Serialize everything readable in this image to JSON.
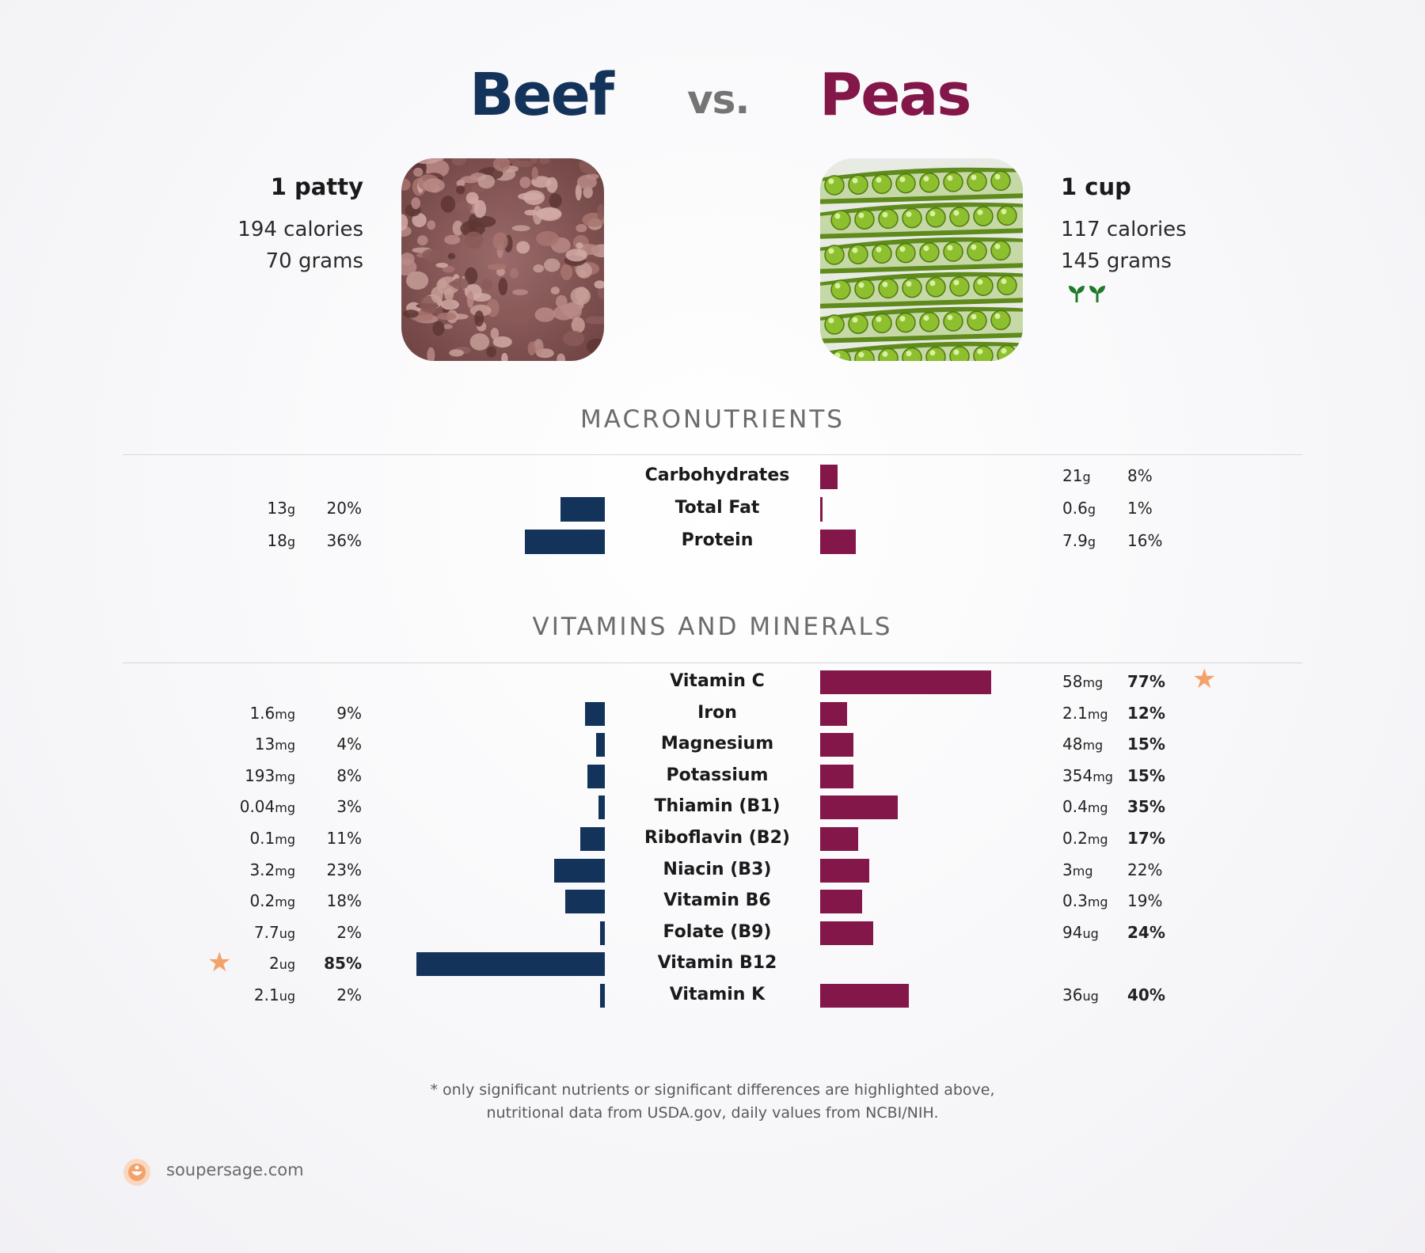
{
  "header": {
    "left_name": "Beef",
    "vs": "vs.",
    "right_name": "Peas",
    "left_color": "#14335a",
    "right_color": "#83174a"
  },
  "left_food": {
    "serving": "1 patty",
    "calories": "194 calories",
    "grams": "70 grams"
  },
  "right_food": {
    "serving": "1 cup",
    "calories": "117 calories",
    "grams": "145 grams",
    "badge_icon": "sprout-icon"
  },
  "sections": {
    "macros_title": "MACRONUTRIENTS",
    "vitamins_title": "VITAMINS AND MINERALS"
  },
  "chart_data": [
    {
      "type": "bar",
      "title": "MACRONUTRIENTS",
      "orientation": "horizontal-diverging",
      "rows": [
        {
          "label": "Carbohydrates",
          "left_amount": "",
          "left_unit": "",
          "left_pct": null,
          "left_pct_text": "",
          "left_bold": false,
          "right_amount": "21",
          "right_unit": "g",
          "right_pct": 8,
          "right_pct_text": "8%",
          "right_bold": false
        },
        {
          "label": "Total Fat",
          "left_amount": "13",
          "left_unit": "g",
          "left_pct": 20,
          "left_pct_text": "20%",
          "left_bold": false,
          "right_amount": "0.6",
          "right_unit": "g",
          "right_pct": 1,
          "right_pct_text": "1%",
          "right_bold": false
        },
        {
          "label": "Protein",
          "left_amount": "18",
          "left_unit": "g",
          "left_pct": 36,
          "left_pct_text": "36%",
          "left_bold": false,
          "right_amount": "7.9",
          "right_unit": "g",
          "right_pct": 16,
          "right_pct_text": "16%",
          "right_bold": false
        }
      ]
    },
    {
      "type": "bar",
      "title": "VITAMINS AND MINERALS",
      "orientation": "horizontal-diverging",
      "rows": [
        {
          "label": "Vitamin C",
          "left_amount": "",
          "left_unit": "",
          "left_pct": null,
          "left_pct_text": "",
          "left_bold": false,
          "right_amount": "58",
          "right_unit": "mg",
          "right_pct": 77,
          "right_pct_text": "77%",
          "right_bold": true,
          "star": "right"
        },
        {
          "label": "Iron",
          "left_amount": "1.6",
          "left_unit": "mg",
          "left_pct": 9,
          "left_pct_text": "9%",
          "left_bold": false,
          "right_amount": "2.1",
          "right_unit": "mg",
          "right_pct": 12,
          "right_pct_text": "12%",
          "right_bold": true
        },
        {
          "label": "Magnesium",
          "left_amount": "13",
          "left_unit": "mg",
          "left_pct": 4,
          "left_pct_text": "4%",
          "left_bold": false,
          "right_amount": "48",
          "right_unit": "mg",
          "right_pct": 15,
          "right_pct_text": "15%",
          "right_bold": true
        },
        {
          "label": "Potassium",
          "left_amount": "193",
          "left_unit": "mg",
          "left_pct": 8,
          "left_pct_text": "8%",
          "left_bold": false,
          "right_amount": "354",
          "right_unit": "mg",
          "right_pct": 15,
          "right_pct_text": "15%",
          "right_bold": true
        },
        {
          "label": "Thiamin (B1)",
          "left_amount": "0.04",
          "left_unit": "mg",
          "left_pct": 3,
          "left_pct_text": "3%",
          "left_bold": false,
          "right_amount": "0.4",
          "right_unit": "mg",
          "right_pct": 35,
          "right_pct_text": "35%",
          "right_bold": true
        },
        {
          "label": "Riboflavin (B2)",
          "left_amount": "0.1",
          "left_unit": "mg",
          "left_pct": 11,
          "left_pct_text": "11%",
          "left_bold": false,
          "right_amount": "0.2",
          "right_unit": "mg",
          "right_pct": 17,
          "right_pct_text": "17%",
          "right_bold": true
        },
        {
          "label": "Niacin (B3)",
          "left_amount": "3.2",
          "left_unit": "mg",
          "left_pct": 23,
          "left_pct_text": "23%",
          "left_bold": false,
          "right_amount": "3",
          "right_unit": "mg",
          "right_pct": 22,
          "right_pct_text": "22%",
          "right_bold": false
        },
        {
          "label": "Vitamin B6",
          "left_amount": "0.2",
          "left_unit": "mg",
          "left_pct": 18,
          "left_pct_text": "18%",
          "left_bold": false,
          "right_amount": "0.3",
          "right_unit": "mg",
          "right_pct": 19,
          "right_pct_text": "19%",
          "right_bold": false
        },
        {
          "label": "Folate (B9)",
          "left_amount": "7.7",
          "left_unit": "ug",
          "left_pct": 2,
          "left_pct_text": "2%",
          "left_bold": false,
          "right_amount": "94",
          "right_unit": "ug",
          "right_pct": 24,
          "right_pct_text": "24%",
          "right_bold": true
        },
        {
          "label": "Vitamin B12",
          "left_amount": "2",
          "left_unit": "ug",
          "left_pct": 85,
          "left_pct_text": "85%",
          "left_bold": true,
          "right_amount": "",
          "right_unit": "",
          "right_pct": null,
          "right_pct_text": "",
          "right_bold": false,
          "star": "left"
        },
        {
          "label": "Vitamin K",
          "left_amount": "2.1",
          "left_unit": "ug",
          "left_pct": 2,
          "left_pct_text": "2%",
          "left_bold": false,
          "right_amount": "36",
          "right_unit": "ug",
          "right_pct": 40,
          "right_pct_text": "40%",
          "right_bold": true
        }
      ]
    }
  ],
  "footnote": {
    "line1": "* only significant nutrients or significant differences are highlighted above,",
    "line2": "nutritional data from USDA.gov, daily values from NCBI/NIH."
  },
  "brand": {
    "name": "soupersage.com",
    "logo_icon": "soupersage-logo-icon"
  },
  "star_icon": "star-icon",
  "star_color": "#f2a26a"
}
